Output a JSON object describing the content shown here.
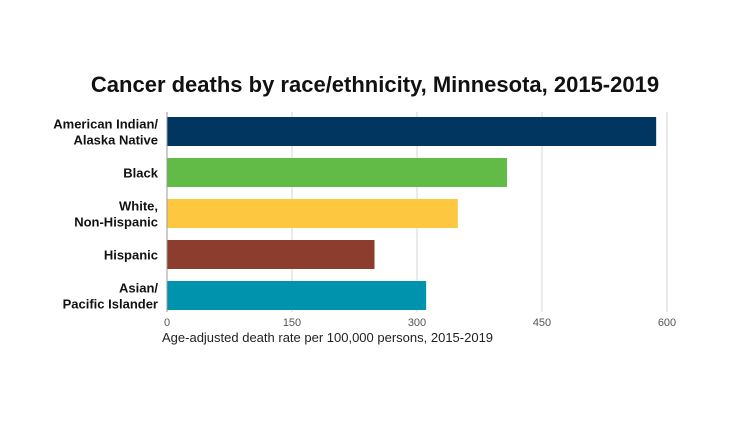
{
  "chart_data": {
    "type": "bar",
    "orientation": "horizontal",
    "title": "Cancer deaths by race/ethnicity, Minnesota, 2015-2019",
    "xlabel": "Age-adjusted death rate per 100,000 persons, 2015-2019",
    "ylabel": "",
    "xlim": [
      0,
      600
    ],
    "ticks": [
      0,
      150,
      300,
      450,
      600
    ],
    "grid": true,
    "categories": [
      [
        "American Indian/",
        "Alaska Native"
      ],
      [
        "Black"
      ],
      [
        "White,",
        "Non-Hispanic"
      ],
      [
        "Hispanic"
      ],
      [
        "Asian/",
        "Pacific Islander"
      ]
    ],
    "values": [
      587,
      408,
      349,
      249,
      311
    ],
    "colors": [
      "#00365f",
      "#63bb47",
      "#fdc840",
      "#8d3d2e",
      "#0093ad"
    ]
  }
}
